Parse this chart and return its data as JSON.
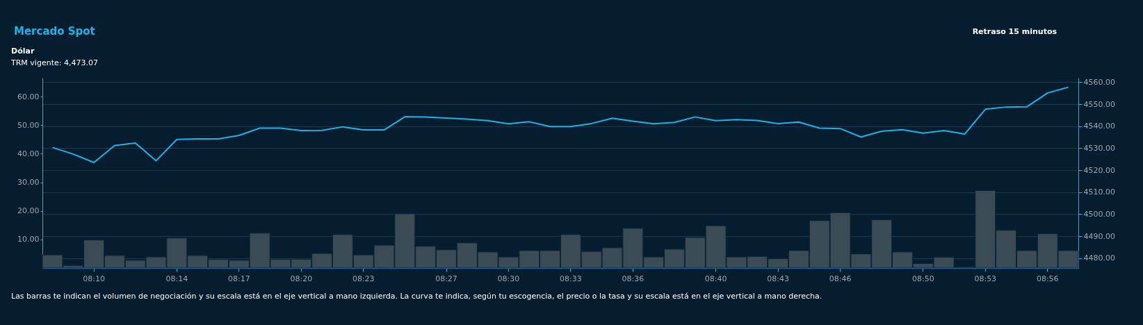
{
  "chart_data": {
    "type": "bar",
    "title": "Mercado Spot",
    "subtitle": "Dólar",
    "annotations": [
      "TRM vigente: 4,473.07",
      "Retraso 15 minutos",
      "Las barras te indican el volumen de negociación y su escala está en el eje vertical a mano izquierda. La curva te indica, según tu escogencia, el precio o la tasa y su escala está en el eje vertical a mano derecha."
    ],
    "categories": [
      null,
      null,
      "08:10",
      null,
      null,
      null,
      "08:14",
      null,
      null,
      "08:17",
      null,
      null,
      "08:20",
      null,
      null,
      "08:23",
      null,
      null,
      null,
      "08:27",
      null,
      null,
      "08:30",
      null,
      null,
      "08:33",
      null,
      null,
      "08:36",
      null,
      null,
      null,
      "08:40",
      null,
      null,
      "08:43",
      null,
      null,
      "08:46",
      null,
      null,
      null,
      "08:50",
      null,
      null,
      "08:53",
      null,
      null,
      "08:56",
      null
    ],
    "series": [
      {
        "color": "#3b4b56",
        "values": [
          4.6,
          0.9,
          9.8,
          4.4,
          2.7,
          3.9,
          10.5,
          4.4,
          3.0,
          2.7,
          12.2,
          3.0,
          3.1,
          5.1,
          11.7,
          4.6,
          8.0,
          19.0,
          7.6,
          6.4,
          8.8,
          5.6,
          3.9,
          6.1,
          6.1,
          11.7,
          5.8,
          7.1,
          13.9,
          3.9,
          6.6,
          10.7,
          14.8,
          3.9,
          4.1,
          3.3,
          6.1,
          16.6,
          19.4,
          4.9,
          16.9,
          5.6,
          1.6,
          3.8,
          0.4,
          27.1,
          13.2,
          6.1,
          12.0,
          6.1
        ]
      },
      {
        "type": "line",
        "axis": "y2",
        "color": "#1ab3e6",
        "values": [
          4530.3,
          4527.3,
          4523.5,
          4531.2,
          4532.3,
          4524.3,
          4534.0,
          4534.2,
          4534.2,
          4535.8,
          4539.1,
          4539.1,
          4538.0,
          4538.1,
          4539.7,
          4538.3,
          4538.3,
          4544.3,
          4544.2,
          4543.7,
          4543.2,
          4542.5,
          4541.1,
          4542.0,
          4539.8,
          4539.8,
          4541.2,
          4543.6,
          4542.3,
          4541.1,
          4541.7,
          4544.2,
          4542.5,
          4543.0,
          4542.6,
          4541.2,
          4541.9,
          4539.1,
          4538.9,
          4535.1,
          4537.7,
          4538.4,
          4536.8,
          4538.0,
          4536.4,
          4547.7,
          4548.7,
          4548.8,
          4555.1,
          4557.7
        ]
      }
    ],
    "ylim": [
      0,
      66.6
    ],
    "yticks": [
      {
        "value": 10,
        "label": "10.00"
      },
      {
        "value": 20,
        "label": "20.00"
      },
      {
        "value": 30,
        "label": "30.00"
      },
      {
        "value": 40,
        "label": "40.00"
      },
      {
        "value": 50,
        "label": "50.00"
      },
      {
        "value": 60,
        "label": "60.00"
      }
    ],
    "y2lim": [
      4475.5,
      4562
    ],
    "y2ticks": [
      {
        "value": 4480,
        "label": "4480.00"
      },
      {
        "value": 4490,
        "label": "4490.00"
      },
      {
        "value": 4500,
        "label": "4500.00"
      },
      {
        "value": 4510,
        "label": "4510.00"
      },
      {
        "value": 4520,
        "label": "4520.00"
      },
      {
        "value": 4530,
        "label": "4530.00"
      },
      {
        "value": 4540,
        "label": "4540.00"
      },
      {
        "value": 4550,
        "label": "4550.00"
      },
      {
        "value": 4560,
        "label": "4560.00"
      }
    ],
    "grid": true
  }
}
